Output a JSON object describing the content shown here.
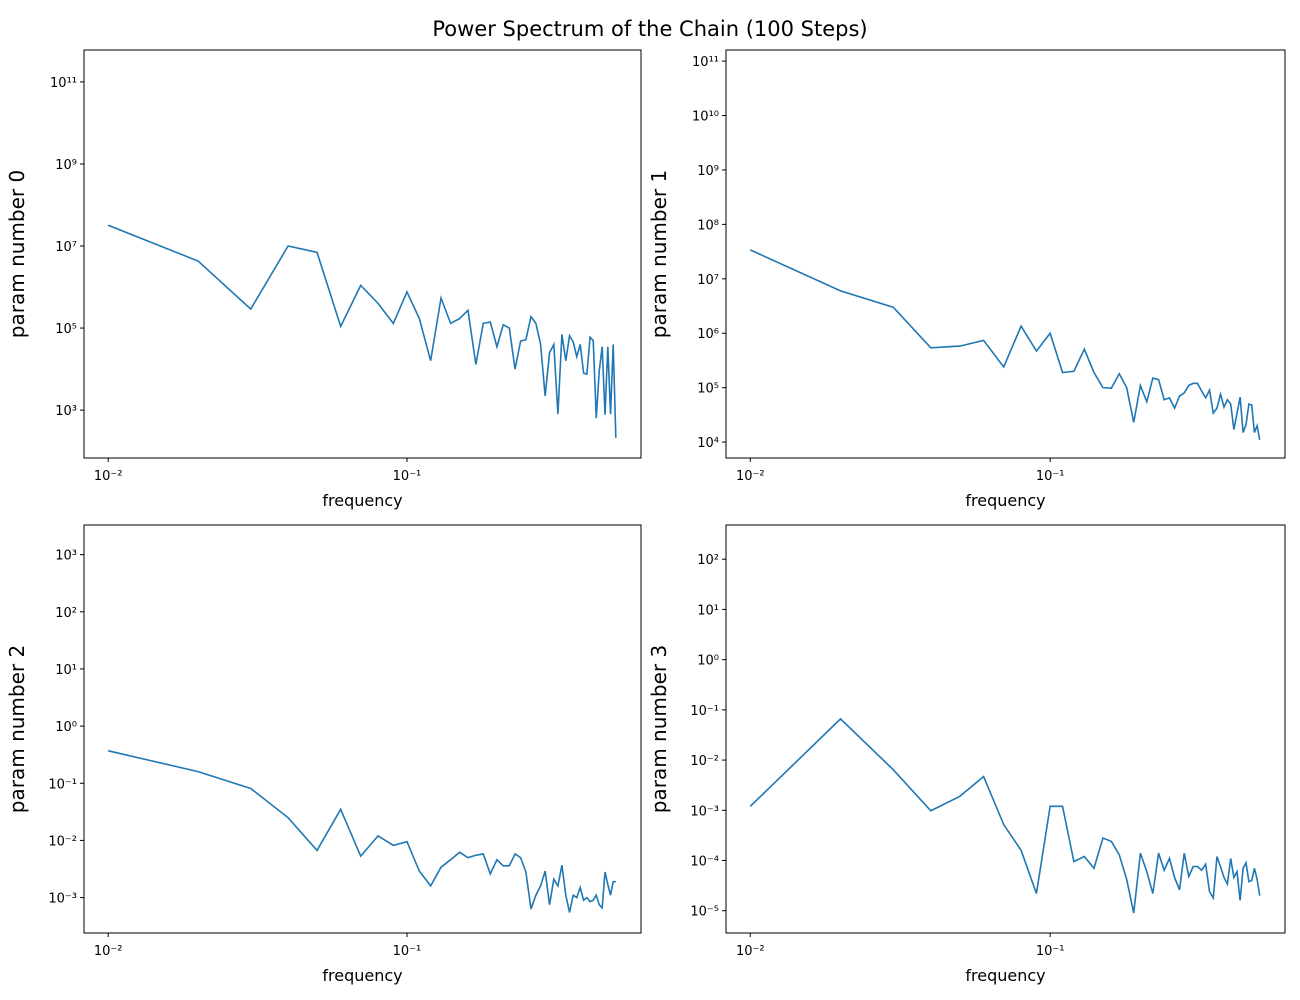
{
  "title": "Power Spectrum of the Chain (100 Steps)",
  "chart_data": [
    {
      "type": "line",
      "xlabel": "frequency",
      "ylabel": "param number 0",
      "xscale": "log",
      "yscale": "log",
      "color": "#1f77b4",
      "x": [
        0.01,
        0.02,
        0.03,
        0.04,
        0.05,
        0.06,
        0.07,
        0.08,
        0.09,
        0.1,
        0.11,
        0.12,
        0.13,
        0.14,
        0.15,
        0.16,
        0.17,
        0.18,
        0.19,
        0.2,
        0.21,
        0.22,
        0.23,
        0.24,
        0.25,
        0.26,
        0.27,
        0.28,
        0.29,
        0.3,
        0.31,
        0.32,
        0.33,
        0.34,
        0.35,
        0.36,
        0.37,
        0.38,
        0.39,
        0.4,
        0.41,
        0.42,
        0.43,
        0.44,
        0.45,
        0.46,
        0.47,
        0.48,
        0.49,
        0.5
      ],
      "values": [
        32000000,
        4300000,
        290000,
        10000000,
        7000000,
        110000,
        1100000,
        400000,
        130000,
        760000,
        170000,
        16000,
        540000,
        130000,
        170000,
        270000,
        13000,
        130000,
        140000,
        35000,
        120000,
        100000,
        10000,
        48000,
        52000,
        190000,
        130000,
        40000,
        2200,
        25000,
        40000,
        800,
        70000,
        16000,
        65000,
        46000,
        20000,
        40000,
        8000,
        7500,
        60000,
        50000,
        640,
        9000,
        35000,
        770,
        35000,
        800,
        40000,
        210
      ],
      "xlim": [
        0.0083,
        0.607
      ],
      "xticks": [
        {
          "value": 0.01,
          "label": "10⁻²"
        },
        {
          "value": 0.1,
          "label": "10⁻¹"
        }
      ],
      "ylim": [
        68,
        600000000000
      ],
      "yticks": [
        {
          "value": 1000,
          "label": "10³"
        },
        {
          "value": 100000,
          "label": "10⁵"
        },
        {
          "value": 10000000,
          "label": "10⁷"
        },
        {
          "value": 1000000000,
          "label": "10⁹"
        },
        {
          "value": 100000000000,
          "label": "10¹¹"
        }
      ]
    },
    {
      "type": "line",
      "xlabel": "frequency",
      "ylabel": "param number 1",
      "xscale": "log",
      "yscale": "log",
      "color": "#1f77b4",
      "x": [
        0.01,
        0.02,
        0.03,
        0.04,
        0.05,
        0.06,
        0.07,
        0.08,
        0.09,
        0.1,
        0.11,
        0.12,
        0.13,
        0.14,
        0.15,
        0.16,
        0.17,
        0.18,
        0.19,
        0.2,
        0.21,
        0.22,
        0.23,
        0.24,
        0.25,
        0.26,
        0.27,
        0.28,
        0.29,
        0.3,
        0.31,
        0.32,
        0.33,
        0.34,
        0.35,
        0.36,
        0.37,
        0.38,
        0.39,
        0.4,
        0.41,
        0.42,
        0.43,
        0.44,
        0.45,
        0.46,
        0.47,
        0.48,
        0.49,
        0.5
      ],
      "values": [
        34000000,
        6000000,
        3000000,
        540000,
        580000,
        740000,
        240000,
        1350000,
        470000,
        1000000,
        190000,
        200000,
        510000,
        190000,
        100000,
        98000,
        180000,
        100000,
        23000,
        110000,
        55000,
        150000,
        140000,
        60000,
        65000,
        42000,
        70000,
        80000,
        110000,
        120000,
        120000,
        87000,
        65000,
        90000,
        34000,
        42000,
        76000,
        44000,
        60000,
        50000,
        17000,
        34000,
        67000,
        15000,
        21000,
        50000,
        48000,
        15000,
        20000,
        11000
      ],
      "xlim": [
        0.0083,
        0.607
      ],
      "xticks": [
        {
          "value": 0.01,
          "label": "10⁻²"
        },
        {
          "value": 0.1,
          "label": "10⁻¹"
        }
      ],
      "ylim": [
        5100,
        160000000000
      ],
      "yticks": [
        {
          "value": 10000,
          "label": "10⁴"
        },
        {
          "value": 100000,
          "label": "10⁵"
        },
        {
          "value": 1000000,
          "label": "10⁶"
        },
        {
          "value": 10000000,
          "label": "10⁷"
        },
        {
          "value": 100000000,
          "label": "10⁸"
        },
        {
          "value": 1000000000,
          "label": "10⁹"
        },
        {
          "value": 10000000000,
          "label": "10¹⁰"
        },
        {
          "value": 100000000000,
          "label": "10¹¹"
        }
      ]
    },
    {
      "type": "line",
      "xlabel": "frequency",
      "ylabel": "param number 2",
      "xscale": "log",
      "yscale": "log",
      "color": "#1f77b4",
      "x": [
        0.01,
        0.02,
        0.03,
        0.04,
        0.05,
        0.06,
        0.07,
        0.08,
        0.09,
        0.1,
        0.11,
        0.12,
        0.13,
        0.14,
        0.15,
        0.16,
        0.17,
        0.18,
        0.19,
        0.2,
        0.21,
        0.22,
        0.23,
        0.24,
        0.25,
        0.26,
        0.27,
        0.28,
        0.29,
        0.3,
        0.31,
        0.32,
        0.33,
        0.34,
        0.35,
        0.36,
        0.37,
        0.38,
        0.39,
        0.4,
        0.41,
        0.42,
        0.43,
        0.44,
        0.45,
        0.46,
        0.47,
        0.48,
        0.49,
        0.5
      ],
      "values": [
        0.37,
        0.16,
        0.081,
        0.025,
        0.0067,
        0.035,
        0.0053,
        0.012,
        0.0082,
        0.0095,
        0.0029,
        0.0016,
        0.0034,
        0.0046,
        0.0062,
        0.005,
        0.0055,
        0.0058,
        0.0026,
        0.0046,
        0.0036,
        0.0036,
        0.0058,
        0.005,
        0.0028,
        0.00063,
        0.0011,
        0.0016,
        0.0029,
        0.00075,
        0.0021,
        0.0016,
        0.0037,
        0.0011,
        0.00055,
        0.0011,
        0.001,
        0.0015,
        0.0009,
        0.001,
        0.00085,
        0.0009,
        0.0011,
        0.00075,
        0.00066,
        0.0028,
        0.0017,
        0.0011,
        0.0019,
        0.0019
      ],
      "xlim": [
        0.0083,
        0.607
      ],
      "xticks": [
        {
          "value": 0.01,
          "label": "10⁻²"
        },
        {
          "value": 0.1,
          "label": "10⁻¹"
        }
      ],
      "ylim": [
        0.00024,
        3300
      ],
      "yticks": [
        {
          "value": 0.001,
          "label": "10⁻³"
        },
        {
          "value": 0.01,
          "label": "10⁻²"
        },
        {
          "value": 0.1,
          "label": "10⁻¹"
        },
        {
          "value": 1,
          "label": "10⁰"
        },
        {
          "value": 10,
          "label": "10¹"
        },
        {
          "value": 100,
          "label": "10²"
        },
        {
          "value": 1000,
          "label": "10³"
        }
      ]
    },
    {
      "type": "line",
      "xlabel": "frequency",
      "ylabel": "param number 3",
      "xscale": "log",
      "yscale": "log",
      "color": "#1f77b4",
      "x": [
        0.01,
        0.02,
        0.03,
        0.04,
        0.05,
        0.06,
        0.07,
        0.08,
        0.09,
        0.1,
        0.11,
        0.12,
        0.13,
        0.14,
        0.15,
        0.16,
        0.17,
        0.18,
        0.19,
        0.2,
        0.21,
        0.22,
        0.23,
        0.24,
        0.25,
        0.26,
        0.27,
        0.28,
        0.29,
        0.3,
        0.31,
        0.32,
        0.33,
        0.34,
        0.35,
        0.36,
        0.37,
        0.38,
        0.39,
        0.4,
        0.41,
        0.42,
        0.43,
        0.44,
        0.45,
        0.46,
        0.47,
        0.48,
        0.49,
        0.5
      ],
      "values": [
        0.0012,
        0.066,
        0.0064,
        0.00098,
        0.0019,
        0.0047,
        0.00052,
        0.00016,
        2.2e-05,
        0.0012,
        0.0012,
        9.5e-05,
        0.00012,
        7e-05,
        0.00028,
        0.00024,
        0.00013,
        4.2e-05,
        9e-06,
        0.00014,
        6e-05,
        2.2e-05,
        0.00014,
        6.4e-05,
        0.00011,
        4.6e-05,
        2.6e-05,
        0.00014,
        4.8e-05,
        7.6e-05,
        7.6e-05,
        6.4e-05,
        8.5e-05,
        2.4e-05,
        1.8e-05,
        0.00012,
        7.5e-05,
        4.6e-05,
        3.4e-05,
        0.00011,
        4.6e-05,
        6e-05,
        1.6e-05,
        7e-05,
        9e-05,
        3.8e-05,
        4e-05,
        7e-05,
        4.2e-05,
        2e-05
      ],
      "xlim": [
        0.0083,
        0.607
      ],
      "xticks": [
        {
          "value": 0.01,
          "label": "10⁻²"
        },
        {
          "value": 0.1,
          "label": "10⁻¹"
        }
      ],
      "ylim": [
        3.6e-06,
        480
      ],
      "yticks": [
        {
          "value": 1e-05,
          "label": "10⁻⁵"
        },
        {
          "value": 0.0001,
          "label": "10⁻⁴"
        },
        {
          "value": 0.001,
          "label": "10⁻³"
        },
        {
          "value": 0.01,
          "label": "10⁻²"
        },
        {
          "value": 0.1,
          "label": "10⁻¹"
        },
        {
          "value": 1,
          "label": "10⁰"
        },
        {
          "value": 10,
          "label": "10¹"
        },
        {
          "value": 100,
          "label": "10²"
        }
      ]
    }
  ]
}
